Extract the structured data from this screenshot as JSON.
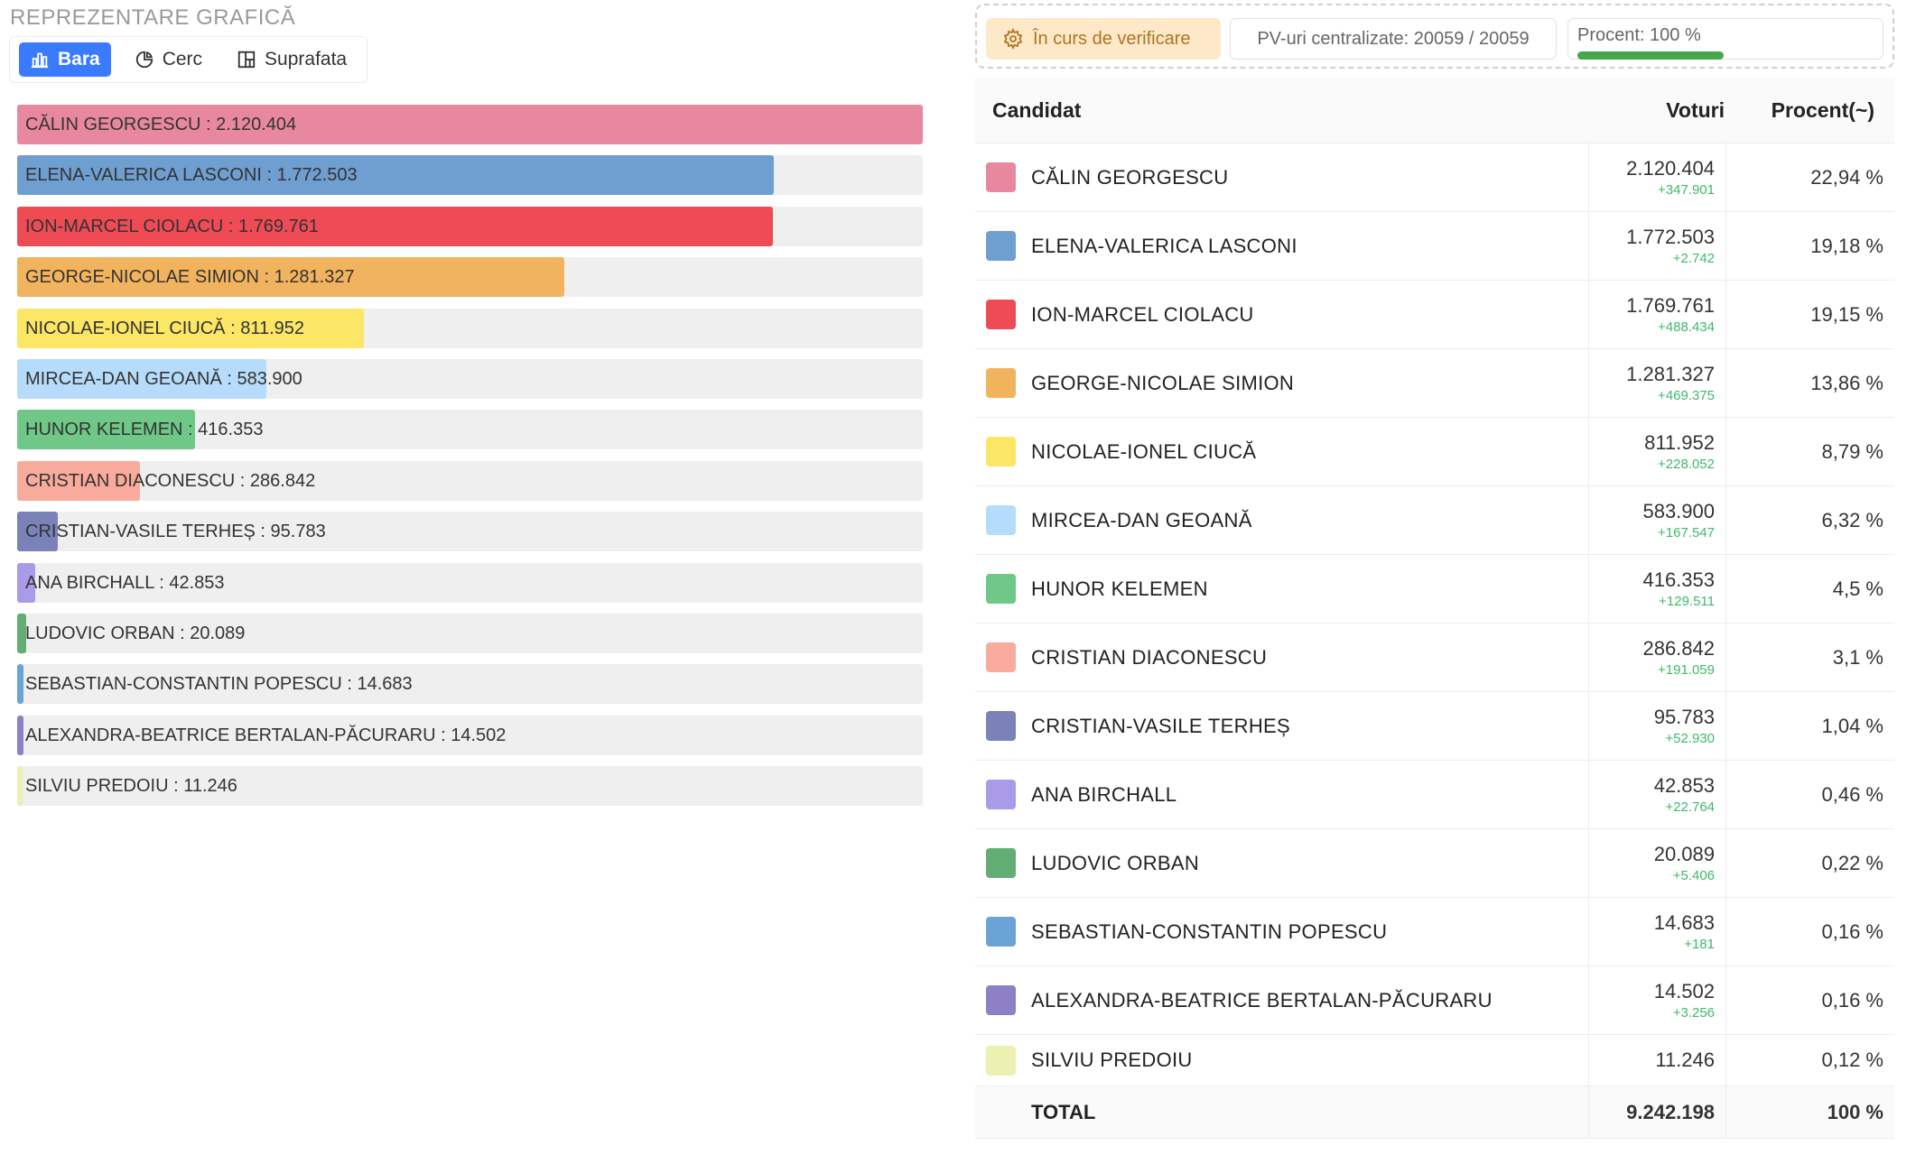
{
  "left": {
    "section_title": "REPREZENTARE GRAFICĂ",
    "tabs": [
      {
        "label": "Bara",
        "icon": "bar-chart-icon",
        "active": true
      },
      {
        "label": "Cerc",
        "icon": "pie-chart-icon",
        "active": false
      },
      {
        "label": "Suprafata",
        "icon": "treemap-icon",
        "active": false
      }
    ]
  },
  "right": {
    "status_label": "În curs de verificare",
    "pv_label": "PV-uri centralizate: 20059 / 20059",
    "procent_label": "Procent: 100 %",
    "procent_value": 100,
    "table": {
      "headers": {
        "candidate": "Candidat",
        "votes": "Voturi",
        "percent": "Procent(~)"
      },
      "rows": [
        {
          "name": "CĂLIN GEORGESCU",
          "votes": "2.120.404",
          "delta": "+347.901",
          "percent": "22,94 %"
        },
        {
          "name": "ELENA-VALERICA LASCONI",
          "votes": "1.772.503",
          "delta": "+2.742",
          "percent": "19,18 %"
        },
        {
          "name": "ION-MARCEL CIOLACU",
          "votes": "1.769.761",
          "delta": "+488.434",
          "percent": "19,15 %"
        },
        {
          "name": "GEORGE-NICOLAE SIMION",
          "votes": "1.281.327",
          "delta": "+469.375",
          "percent": "13,86 %"
        },
        {
          "name": "NICOLAE-IONEL CIUCĂ",
          "votes": "811.952",
          "delta": "+228.052",
          "percent": "8,79 %"
        },
        {
          "name": "MIRCEA-DAN GEOANĂ",
          "votes": "583.900",
          "delta": "+167.547",
          "percent": "6,32 %"
        },
        {
          "name": "HUNOR KELEMEN",
          "votes": "416.353",
          "delta": "+129.511",
          "percent": "4,5 %"
        },
        {
          "name": "CRISTIAN DIACONESCU",
          "votes": "286.842",
          "delta": "+191.059",
          "percent": "3,1 %"
        },
        {
          "name": "CRISTIAN-VASILE TERHEȘ",
          "votes": "95.783",
          "delta": "+52.930",
          "percent": "1,04 %"
        },
        {
          "name": "ANA BIRCHALL",
          "votes": "42.853",
          "delta": "+22.764",
          "percent": "0,46 %"
        },
        {
          "name": "LUDOVIC ORBAN",
          "votes": "20.089",
          "delta": "+5.406",
          "percent": "0,22 %"
        },
        {
          "name": "SEBASTIAN-CONSTANTIN POPESCU",
          "votes": "14.683",
          "delta": "+181",
          "percent": "0,16 %"
        },
        {
          "name": "ALEXANDRA-BEATRICE BERTALAN-PĂCURARU",
          "votes": "14.502",
          "delta": "+3.256",
          "percent": "0,16 %"
        },
        {
          "name": "SILVIU PREDOIU",
          "votes": "11.246",
          "delta": "",
          "percent": "0,12 %"
        }
      ],
      "total": {
        "label": "TOTAL",
        "votes": "9.242.198",
        "percent": "100 %"
      }
    }
  },
  "chart_data": {
    "type": "bar",
    "orientation": "horizontal",
    "categories": [
      "CĂLIN GEORGESCU",
      "ELENA-VALERICA LASCONI",
      "ION-MARCEL CIOLACU",
      "GEORGE-NICOLAE SIMION",
      "NICOLAE-IONEL CIUCĂ",
      "MIRCEA-DAN GEOANĂ",
      "HUNOR KELEMEN",
      "CRISTIAN DIACONESCU",
      "CRISTIAN-VASILE TERHEȘ",
      "ANA BIRCHALL",
      "LUDOVIC ORBAN",
      "SEBASTIAN-CONSTANTIN POPESCU",
      "ALEXANDRA-BEATRICE BERTALAN-PĂCURARU",
      "SILVIU PREDOIU"
    ],
    "values": [
      2120404,
      1772503,
      1769761,
      1281327,
      811952,
      583900,
      416353,
      286842,
      95783,
      42853,
      20089,
      14683,
      14502,
      11246
    ],
    "labels": [
      "2.120.404",
      "1.772.503",
      "1.769.761",
      "1.281.327",
      "811.952",
      "583.900",
      "416.353",
      "286.842",
      "95.783",
      "42.853",
      "20.089",
      "14.683",
      "14.502",
      "11.246"
    ],
    "colors": [
      "#e8889e",
      "#6f9ed0",
      "#ee4b55",
      "#f2b35f",
      "#fbe666",
      "#b6dcfb",
      "#6fc887",
      "#f8ab9d",
      "#7a82b8",
      "#aa9be9",
      "#62ad73",
      "#6aa4d6",
      "#8e80c6",
      "#ecf1b3"
    ],
    "xlim": [
      0,
      2120404
    ],
    "title": "",
    "xlabel": "",
    "ylabel": ""
  }
}
